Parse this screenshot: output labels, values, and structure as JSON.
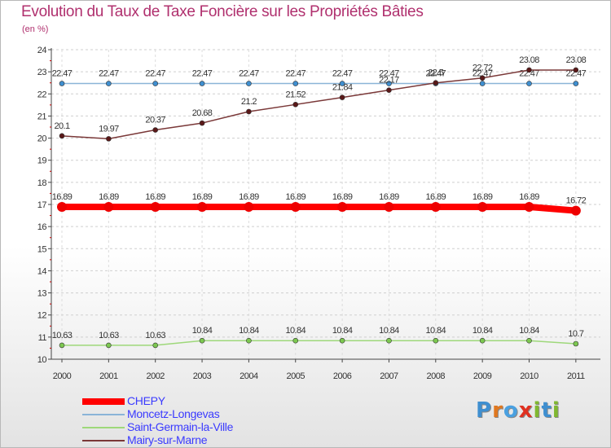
{
  "header": {
    "title": "Evolution du Taux de Taxe Foncière sur les Propriétés Bâties",
    "subtitle": "(en %)"
  },
  "logo": {
    "text": "Proxiti",
    "letters": [
      "P",
      "r",
      "o",
      "x",
      "i",
      "t",
      "i"
    ],
    "colors": [
      "#3f8fd0",
      "#e07820",
      "#4aa0e0",
      "#e03020",
      "#80b830",
      "#3f8fd0",
      "#80b830"
    ]
  },
  "chart_data": {
    "type": "line",
    "title": "Evolution du Taux de Taxe Foncière sur les Propriétés Bâties",
    "ylabel": "(en %)",
    "xlabel": "",
    "ylim": [
      10,
      24
    ],
    "yticks": [
      "10",
      "11",
      "12",
      "13",
      "14",
      "15",
      "16",
      "17",
      "18",
      "19",
      "20",
      "21",
      "22",
      "23",
      "24"
    ],
    "categories": [
      "2000",
      "2001",
      "2002",
      "2003",
      "2004",
      "2005",
      "2006",
      "2007",
      "2008",
      "2009",
      "2010",
      "2011"
    ],
    "series": [
      {
        "name": "Moncetz-Longevas",
        "color": "#8ab4d8",
        "marker": "#3f8fd0",
        "thick": false,
        "values": [
          22.47,
          22.47,
          22.47,
          22.47,
          22.47,
          22.47,
          22.47,
          22.47,
          22.47,
          22.47,
          22.47,
          22.47
        ],
        "labels": [
          "22.47",
          "22.47",
          "22.47",
          "22.47",
          "22.47",
          "22.47",
          "22.47",
          "22.47",
          "22.47",
          "22.47",
          "22.47",
          "22.47"
        ]
      },
      {
        "name": "Mairy-sur-Marne",
        "color": "#7a3838",
        "marker": "#5a1818",
        "thick": false,
        "values": [
          20.1,
          19.97,
          20.37,
          20.68,
          21.2,
          21.52,
          21.84,
          22.17,
          22.5,
          22.72,
          23.08,
          23.08
        ],
        "labels": [
          "20.1",
          "19.97",
          "20.37",
          "20.68",
          "21.2",
          "21.52",
          "21.84",
          "22.17",
          "22.5",
          "22.72",
          "23.08",
          "23.08"
        ]
      },
      {
        "name": "Saint-Germain-la-Ville",
        "color": "#9ed87a",
        "marker": "#7cc850",
        "thick": false,
        "values": [
          10.63,
          10.63,
          10.63,
          10.84,
          10.84,
          10.84,
          10.84,
          10.84,
          10.84,
          10.84,
          10.84,
          10.7
        ],
        "labels": [
          "10.63",
          "10.63",
          "10.63",
          "10.84",
          "10.84",
          "10.84",
          "10.84",
          "10.84",
          "10.84",
          "10.84",
          "10.84",
          "10.7"
        ]
      },
      {
        "name": "CHEPY",
        "color": "#ff0000",
        "marker": "#ee0000",
        "thick": true,
        "values": [
          16.89,
          16.89,
          16.89,
          16.89,
          16.89,
          16.89,
          16.89,
          16.89,
          16.89,
          16.89,
          16.89,
          16.72
        ],
        "labels": [
          "16.89",
          "16.89",
          "16.89",
          "16.89",
          "16.89",
          "16.89",
          "16.89",
          "16.89",
          "16.89",
          "16.89",
          "16.89",
          "16.72"
        ]
      }
    ],
    "legend": [
      {
        "name": "CHEPY",
        "color": "#ff0000",
        "thick": true
      },
      {
        "name": "Moncetz-Longevas",
        "color": "#8ab4d8",
        "thick": false
      },
      {
        "name": "Saint-Germain-la-Ville",
        "color": "#9ed87a",
        "thick": false
      },
      {
        "name": "Mairy-sur-Marne",
        "color": "#7a3838",
        "thick": false
      }
    ]
  }
}
